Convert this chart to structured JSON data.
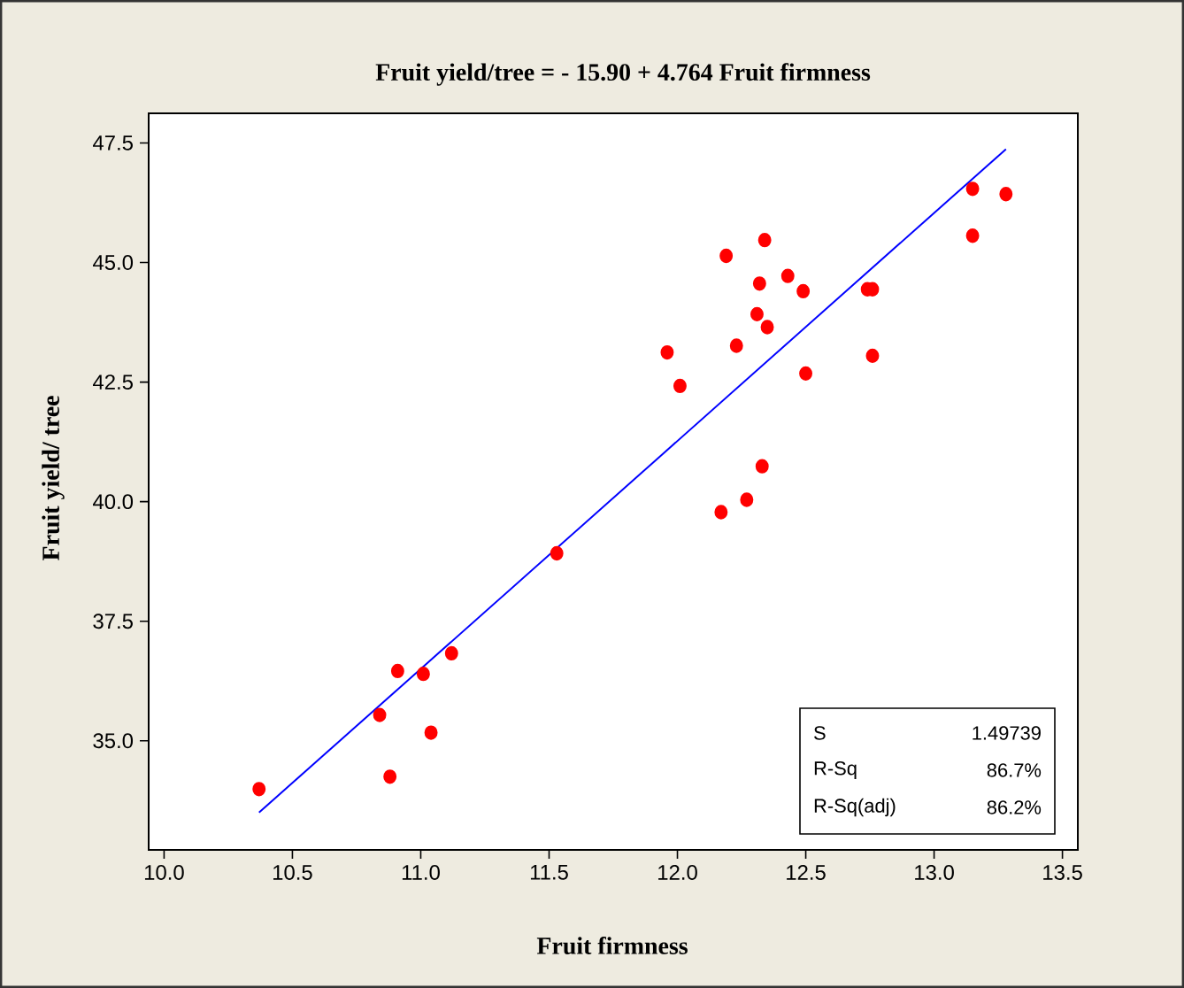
{
  "chart_data": {
    "type": "scatter",
    "title": "Fruit yield/tree =  - 15.90 + 4.764 Fruit firmness",
    "xlabel": "Fruit firmness",
    "ylabel": "Fruit yield/ tree",
    "xlim": [
      9.94,
      13.56
    ],
    "ylim": [
      32.72,
      48.12
    ],
    "xticks": [
      {
        "value": 10,
        "label": "10.0"
      },
      {
        "value": 10.5,
        "label": "10.5"
      },
      {
        "value": 11,
        "label": "11.0"
      },
      {
        "value": 11.5,
        "label": "11.5"
      },
      {
        "value": 12,
        "label": "12.0"
      },
      {
        "value": 12.5,
        "label": "12.5"
      },
      {
        "value": 13,
        "label": "13.0"
      },
      {
        "value": 13.5,
        "label": "13.5"
      }
    ],
    "yticks": [
      {
        "value": 35,
        "label": "35.0"
      },
      {
        "value": 37.5,
        "label": "37.5"
      },
      {
        "value": 40,
        "label": "40.0"
      },
      {
        "value": 42.5,
        "label": "42.5"
      },
      {
        "value": 45,
        "label": "45.0"
      },
      {
        "value": 47.5,
        "label": "47.5"
      }
    ],
    "grid": false,
    "marker": "circle",
    "series": [
      {
        "color": "#ff0000",
        "x": [
          13.15,
          13.28,
          13.15,
          12.34,
          12.19,
          12.32,
          12.43,
          12.49,
          12.74,
          12.76,
          12.31,
          12.35,
          12.23,
          11.96,
          12.01,
          12.5,
          12.76,
          12.33,
          12.27,
          12.17,
          11.53,
          11.12,
          10.91,
          11.01,
          10.84,
          11.04,
          10.88,
          10.37
        ],
        "values": [
          46.54,
          46.43,
          45.56,
          45.47,
          45.14,
          44.56,
          44.72,
          44.4,
          44.44,
          44.44,
          43.92,
          43.65,
          43.26,
          43.12,
          42.42,
          42.68,
          43.05,
          40.74,
          40.04,
          39.78,
          38.92,
          36.83,
          36.46,
          36.4,
          35.54,
          35.17,
          34.25,
          33.99
        ]
      },
      {
        "type": "line",
        "color": "#0000ff",
        "marker": "none",
        "line_style": "solid",
        "x": [
          10.37,
          13.28
        ],
        "values": [
          33.5,
          47.37
        ]
      }
    ],
    "annotations": [
      "S",
      "1.49739",
      "R-Sq",
      "86.7%",
      "R-Sq(adj)",
      "86.2%"
    ]
  }
}
